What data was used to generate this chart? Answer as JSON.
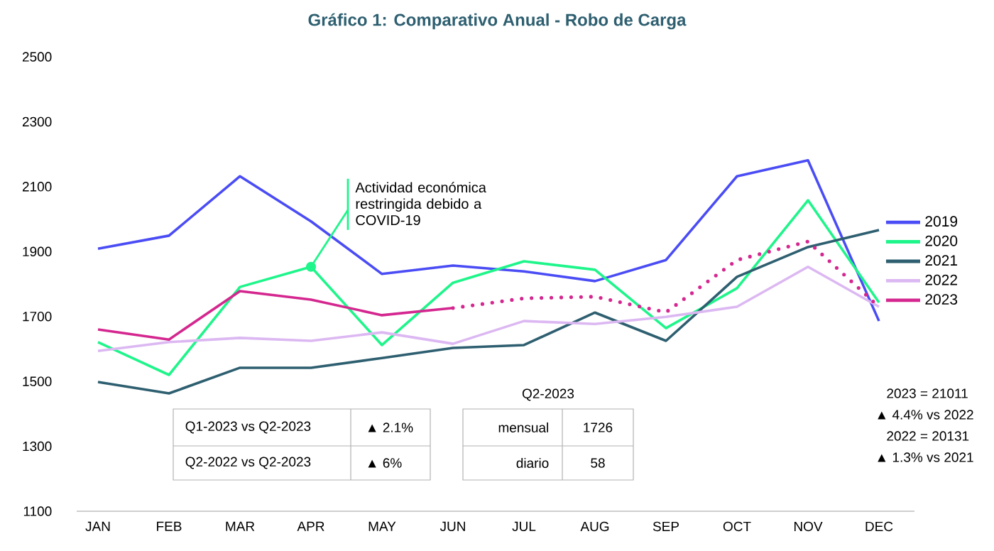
{
  "chart_data": {
    "type": "line",
    "title": "Gráfico 1: Comparativo Anual - Robo de Carga",
    "categories": [
      "JAN",
      "FEB",
      "MAR",
      "APR",
      "MAY",
      "JUN",
      "JUL",
      "AUG",
      "SEP",
      "OCT",
      "NOV",
      "DEC"
    ],
    "series": [
      {
        "name": "2019",
        "color": "#4a4cf5",
        "values": [
          1909,
          1949,
          2132,
          1993,
          1831,
          1857,
          1839,
          1809,
          1874,
          2132,
          2181,
          1686
        ]
      },
      {
        "name": "2020",
        "color": "#1ef58a",
        "values": [
          1621,
          1520,
          1791,
          1853,
          1612,
          1804,
          1870,
          1844,
          1664,
          1787,
          2058,
          1743
        ]
      },
      {
        "name": "2021",
        "color": "#2e5f70",
        "values": [
          1498,
          1463,
          1542,
          1542,
          1572,
          1603,
          1612,
          1712,
          1625,
          1822,
          1914,
          1966
        ]
      },
      {
        "name": "2022",
        "color": "#dcb8f2",
        "values": [
          1594,
          1621,
          1634,
          1625,
          1651,
          1616,
          1686,
          1677,
          1699,
          1730,
          1853,
          1730
        ]
      },
      {
        "name": "2023",
        "color": "#d4278f",
        "values": [
          1660,
          1629,
          1778,
          1752,
          1704,
          1726,
          null,
          null,
          null,
          null,
          null,
          null
        ]
      },
      {
        "color": "#d4278f",
        "line_style": "dotted",
        "values": [
          null,
          null,
          null,
          null,
          null,
          1726,
          1756,
          1761,
          1713,
          1874,
          1931,
          1730
        ]
      }
    ],
    "ylim": [
      1100,
      2500
    ],
    "yticks": [
      1100,
      1300,
      1500,
      1700,
      1900,
      2100,
      2300,
      2500
    ],
    "grid": false,
    "legend": "right",
    "marker": "none",
    "line_style": "solid",
    "annotations": [
      {
        "text": "Actividad económica restringida debido a COVID-19",
        "x": "APR",
        "y": 1853
      },
      "Q1-2023 vs Q2-2023",
      "▲ 2.1%",
      "Q2-2022 vs Q2-2023",
      "▲ 6%",
      "Q2-2023",
      "mensual",
      "1726",
      "diario",
      "58",
      "2023 = 21011",
      "▲ 4.4% vs 2022",
      "2022 = 20131",
      "▲ 1.3% vs 2021"
    ]
  }
}
